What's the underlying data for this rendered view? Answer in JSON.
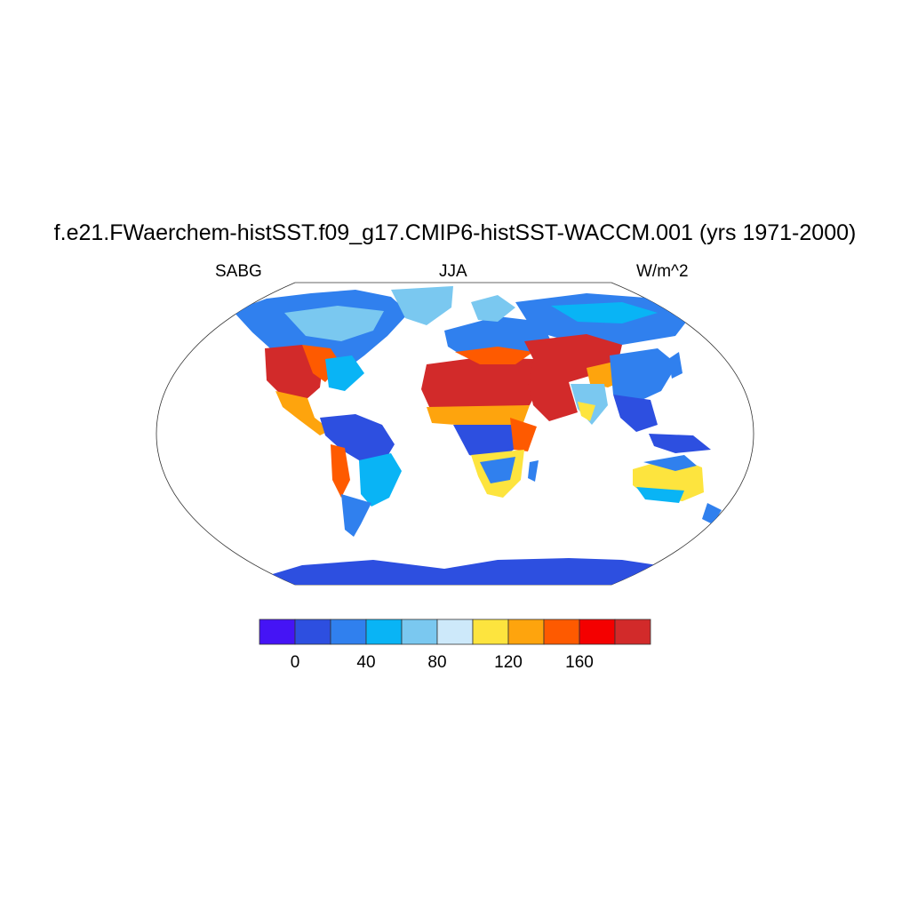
{
  "title": "f.e21.FWaerchem-histSST.f09_g17.CMIP6-histSST-WACCM.001 (yrs 1971-2000)",
  "left_label": "SABG",
  "center_label": "JJA",
  "right_label": "W/m^2",
  "colorbar": {
    "colors": [
      "#4514f5",
      "#2d4fe0",
      "#3080ee",
      "#09b4f5",
      "#7ac8f0",
      "#cde9fa",
      "#fde43e",
      "#fea40d",
      "#fe5a00",
      "#f40000",
      "#d22a2a"
    ],
    "tick_labels": [
      "0",
      "40",
      "80",
      "120",
      "160"
    ]
  }
}
